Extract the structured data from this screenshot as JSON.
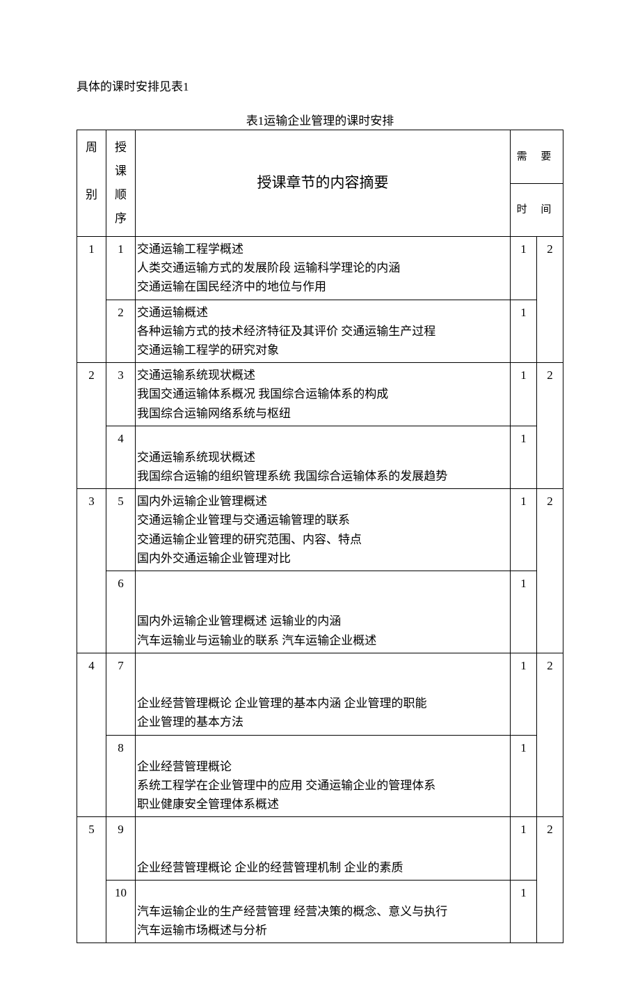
{
  "intro_text": "具体的课时安排见表1",
  "table_caption": "表1运输企业管理的课时安排",
  "headers": {
    "week": "周\n\n别",
    "sequence": "授\n课\n顺\n序",
    "content": "授课章节的内容摘要",
    "time_label": "需 要",
    "time_sub": "时 间"
  },
  "rows": [
    {
      "week": "1",
      "week_rowspan": 2,
      "seq": "1",
      "content": "交通运输工程学概述\n人类交通运输方式的发展阶段  运输科学理论的内涵\n交通运输在国民经济中的地位与作用\n ",
      "t1": "1",
      "t2": "2",
      "t2_rowspan": 2
    },
    {
      "seq": "2",
      "content": "交通运输概述\n各种运输方式的技术经济特征及其评价  交通运输生产过程\n交通运输工程学的研究对象\n ",
      "t1": "1"
    },
    {
      "week": "2",
      "week_rowspan": 2,
      "seq": "3",
      "content": "交通运输系统现状概述\n我国交通运输体系概况  我国综合运输体系的构成\n我国综合运输网络系统与枢纽\n ",
      "t1": "1",
      "t2": "2",
      "t2_rowspan": 2
    },
    {
      "seq": "4",
      "content": " \n交通运输系统现状概述\n我国综合运输的组织管理系统  我国综合运输体系的发展趋势",
      "t1": "1"
    },
    {
      "week": "3",
      "week_rowspan": 2,
      "seq": "5",
      "content": "国内外运输企业管理概述\n交通运输企业管理与交通运输管理的联系\n交通运输企业管理的研究范围、内容、特点\n国内外交通运输企业管理对比",
      "t1": "1",
      "t2": "2",
      "t2_rowspan": 2
    },
    {
      "seq": "6",
      "content": " \n \n国内外运输企业管理概述  运输业的内涵\n汽车运输业与运输业的联系  汽车运输企业概述",
      "t1": "1"
    },
    {
      "week": "4",
      "week_rowspan": 2,
      "seq": "7",
      "content": " \n \n企业经营管理概论  企业管理的基本内涵  企业管理的职能\n企业管理的基本方法",
      "t1": "1",
      "t2": "2",
      "t2_rowspan": 2
    },
    {
      "seq": "8",
      "content": " \n企业经营管理概论\n系统工程学在企业管理中的应用  交通运输企业的管理体系\n职业健康安全管理体系概述",
      "t1": "1"
    },
    {
      "week": "5",
      "week_rowspan": 2,
      "seq": "9",
      "content": " \n \n企业经营管理概论  企业的经营管理机制  企业的素质",
      "t1": "1",
      "t2": "2",
      "t2_rowspan": 2
    },
    {
      "seq": "10",
      "content": " \n汽车运输企业的生产经营管理  经营决策的概念、意义与执行\n汽车运输市场概述与分析",
      "t1": "1"
    }
  ]
}
